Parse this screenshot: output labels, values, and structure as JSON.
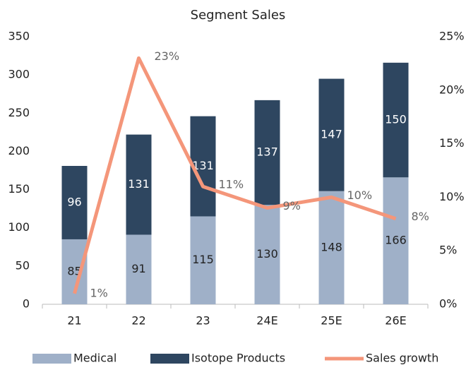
{
  "chart_data": {
    "type": "bar",
    "stacked": true,
    "title": "Segment Sales",
    "categories": [
      "21",
      "22",
      "23",
      "24E",
      "25E",
      "26E"
    ],
    "series": [
      {
        "name": "Medical",
        "color": "#9fb0c8",
        "values": [
          85,
          91,
          115,
          130,
          148,
          166
        ]
      },
      {
        "name": "Isotope Products",
        "color": "#2e4660",
        "values": [
          96,
          131,
          131,
          137,
          147,
          150
        ]
      },
      {
        "name": "Sales growth",
        "color": "#f4967a",
        "type": "line",
        "axis": "y2",
        "values": [
          1,
          23,
          11,
          9,
          10,
          8
        ],
        "value_labels": [
          "1%",
          "23%",
          "11%",
          "9%",
          "10%",
          "8%"
        ]
      }
    ],
    "ylim": [
      0,
      350
    ],
    "yticks": [
      0,
      50,
      100,
      150,
      200,
      250,
      300,
      350
    ],
    "y2lim": [
      0,
      25
    ],
    "y2ticks": [
      {
        "value": 0,
        "label": "0%"
      },
      {
        "value": 5,
        "label": "5%"
      },
      {
        "value": 10,
        "label": "10%"
      },
      {
        "value": 15,
        "label": "15%"
      },
      {
        "value": 20,
        "label": "20%"
      },
      {
        "value": 25,
        "label": "25%"
      }
    ],
    "grid": false,
    "legend": "bottom"
  }
}
